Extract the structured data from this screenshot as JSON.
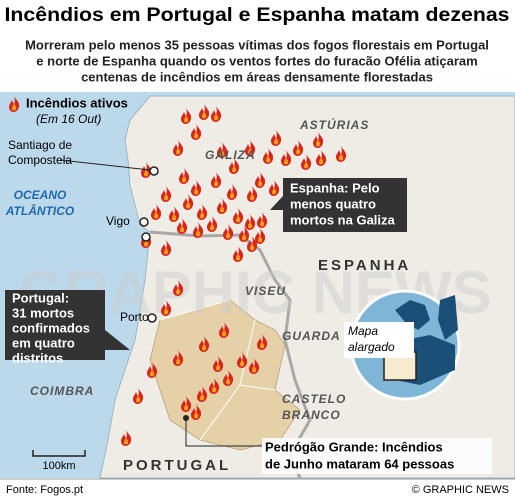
{
  "header": {
    "title": "Incêndios em Portugal e Espanha matam dezenas",
    "subtitle": [
      "Morreram pelo menos 35 pessoas vítimas dos fogos florestais em Portugal",
      "e norte de Espanha quando os ventos fortes do furacão Ofélia atiçaram",
      "centenas de incêndios em áreas densamente florestadas"
    ]
  },
  "legend": {
    "label": "Incêndios ativos",
    "date": "(Em 16 Out)"
  },
  "places": {
    "asturias": "ASTÚRIAS",
    "galiza": "GALIZA",
    "santiago": [
      "Santiago de",
      "Compostela"
    ],
    "ocean": [
      "OCEANO",
      "ATLÂNTICO"
    ],
    "vigo": "Vigo",
    "espanha": "ESPANHA",
    "viseu": "VISEU",
    "porto": "Porto",
    "guarda": "GUARDA",
    "coimbra": "COIMBRA",
    "castelo_branco": [
      "CASTELO",
      "BRANCO"
    ],
    "portugal": "PORTUGAL"
  },
  "callouts": {
    "spain": [
      "Espanha: Pelo",
      "menos quatro",
      "mortos na Galiza"
    ],
    "portugal": [
      "Portugal:",
      "31 mortos",
      "confirmados",
      "em quatro",
      "distritos"
    ],
    "pedrogao": [
      "Pedrógão Grande: Incêndios",
      "de Junho mataram 64 pessoas"
    ]
  },
  "inset": {
    "label": [
      "Mapa",
      "alargado"
    ]
  },
  "scale": "100km",
  "watermark": "GRAPHIC NEWS",
  "footer": {
    "source": "Fonte: Fogos.pt",
    "credit": "© GRAPHIC NEWS"
  }
}
